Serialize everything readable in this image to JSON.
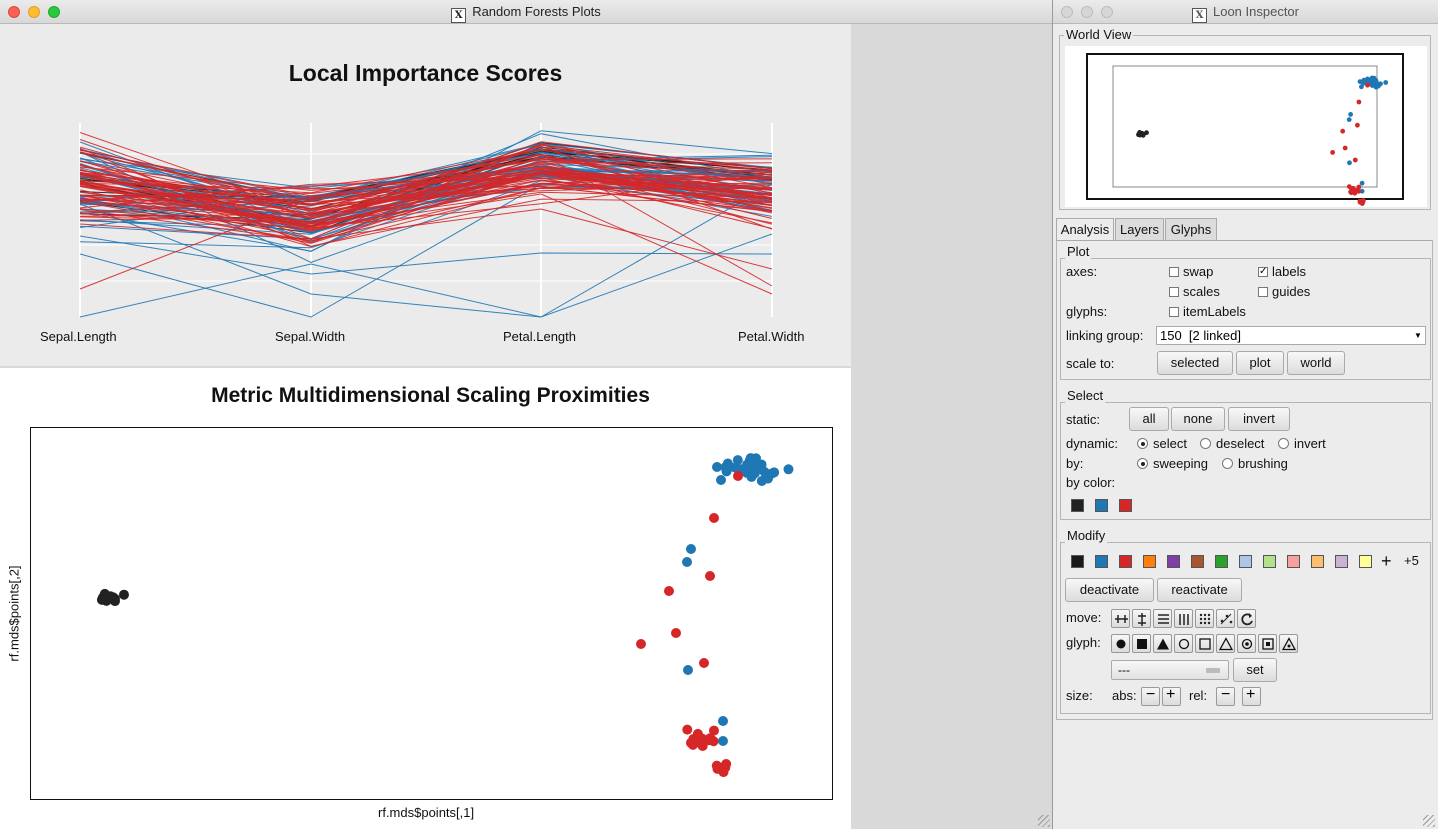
{
  "main_window": {
    "title": "Random Forests Plots",
    "top_plot": {
      "title": "Local Importance Scores",
      "axes": [
        "Sepal.Length",
        "Sepal.Width",
        "Petal.Length",
        "Petal.Width"
      ]
    },
    "bottom_plot": {
      "title": "Metric Multidimensional Scaling Proximities",
      "xlabel": "rf.mds$points[,1]",
      "ylabel": "rf.mds$points[,2]"
    }
  },
  "colors": {
    "black": "#222222",
    "blue": "#1f77b4",
    "red": "#d62728"
  },
  "inspector": {
    "title": "Loon Inspector",
    "world_view_label": "World View",
    "tabs": [
      "Analysis",
      "Layers",
      "Glyphs"
    ],
    "plot": {
      "title": "Plot",
      "axes_label": "axes:",
      "swap": "swap",
      "labels": "labels",
      "scales": "scales",
      "guides": "guides",
      "glyphs_label": "glyphs:",
      "itemlabels": "itemLabels",
      "linking_label": "linking group:",
      "linking_value": "150  [2 linked]",
      "scaleto_label": "scale to:",
      "scale_buttons": [
        "selected",
        "plot",
        "world"
      ]
    },
    "select": {
      "title": "Select",
      "static_label": "static:",
      "static_buttons": [
        "all",
        "none",
        "invert"
      ],
      "dynamic_label": "dynamic:",
      "dynamic_options": [
        "select",
        "deselect",
        "invert"
      ],
      "by_label": "by:",
      "by_options": [
        "sweeping",
        "brushing"
      ],
      "bycolor_label": "by color:",
      "bycolor_swatches": [
        "#222222",
        "#1f77b4",
        "#d62728"
      ]
    },
    "modify": {
      "title": "Modify",
      "swatches": [
        "#1a1a1a",
        "#1f77b4",
        "#d62728",
        "#ff7f0e",
        "#7e3fa5",
        "#a6572d",
        "#2ca02c",
        "#aec7e8",
        "#b5e08b",
        "#f7a0a0",
        "#fdbf6f",
        "#cab2d6",
        "#ffff99"
      ],
      "plus_more": "+5",
      "deactivate": "deactivate",
      "reactivate": "reactivate",
      "move_label": "move:",
      "glyph_label": "glyph:",
      "glyph_select_value": "---",
      "set": "set",
      "size_label": "size:",
      "abs_label": "abs:",
      "rel_label": "rel:",
      "minus": "−",
      "plus": "+"
    }
  }
}
